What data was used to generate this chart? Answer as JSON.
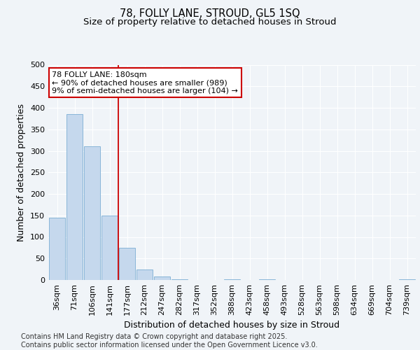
{
  "title1": "78, FOLLY LANE, STROUD, GL5 1SQ",
  "title2": "Size of property relative to detached houses in Stroud",
  "xlabel": "Distribution of detached houses by size in Stroud",
  "ylabel": "Number of detached properties",
  "categories": [
    "36sqm",
    "71sqm",
    "106sqm",
    "141sqm",
    "177sqm",
    "212sqm",
    "247sqm",
    "282sqm",
    "317sqm",
    "352sqm",
    "388sqm",
    "423sqm",
    "458sqm",
    "493sqm",
    "528sqm",
    "563sqm",
    "598sqm",
    "634sqm",
    "669sqm",
    "704sqm",
    "739sqm"
  ],
  "values": [
    145,
    385,
    310,
    150,
    75,
    25,
    8,
    2,
    0,
    0,
    2,
    0,
    1,
    0,
    0,
    0,
    0,
    0,
    0,
    0,
    1
  ],
  "bar_color": "#c5d8ed",
  "bar_edge_color": "#7baed4",
  "vline_x_index": 4,
  "vline_color": "#cc0000",
  "annotation_text_line1": "78 FOLLY LANE: 180sqm",
  "annotation_text_line2": "← 90% of detached houses are smaller (989)",
  "annotation_text_line3": "9% of semi-detached houses are larger (104) →",
  "annotation_box_color": "#cc0000",
  "ylim": [
    0,
    500
  ],
  "yticks": [
    0,
    50,
    100,
    150,
    200,
    250,
    300,
    350,
    400,
    450,
    500
  ],
  "bg_color": "#f0f4f8",
  "plot_bg_color": "#f0f4f8",
  "grid_color": "#ffffff",
  "footer": "Contains HM Land Registry data © Crown copyright and database right 2025.\nContains public sector information licensed under the Open Government Licence v3.0.",
  "title_fontsize": 10.5,
  "subtitle_fontsize": 9.5,
  "axis_label_fontsize": 9,
  "tick_fontsize": 8,
  "annotation_fontsize": 8,
  "footer_fontsize": 7
}
